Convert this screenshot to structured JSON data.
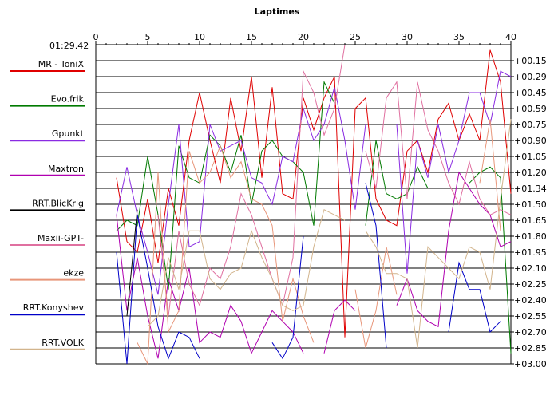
{
  "chart_data": {
    "type": "line",
    "title": "Laptimes",
    "base_time_label": "01:29.42",
    "xlim": [
      0,
      40
    ],
    "x_ticks": [
      0,
      5,
      10,
      15,
      20,
      25,
      30,
      35,
      40
    ],
    "ylim": [
      0,
      3.0
    ],
    "y_tick_labels": [
      "+00.15",
      "+00.29",
      "+00.45",
      "+00.59",
      "+00.75",
      "+00.90",
      "+01.05",
      "+01.20",
      "+01.34",
      "+01.50",
      "+01.65",
      "+01.80",
      "+01.95",
      "+02.10",
      "+02.25",
      "+02.40",
      "+02.55",
      "+02.70",
      "+02.85",
      "+03.00"
    ],
    "grid": true,
    "legend_position": "left",
    "series": [
      {
        "name": "MR - ToniX",
        "color": "#e00000",
        "points": [
          [
            2,
            1.25
          ],
          [
            3,
            1.85
          ],
          [
            4,
            1.95
          ],
          [
            5,
            1.45
          ],
          [
            6,
            2.05
          ],
          [
            7,
            1.35
          ],
          [
            8,
            1.7
          ],
          [
            9,
            0.9
          ],
          [
            10,
            0.45
          ],
          [
            11,
            0.9
          ],
          [
            12,
            1.3
          ],
          [
            13,
            0.5
          ],
          [
            14,
            1.0
          ],
          [
            15,
            0.3
          ],
          [
            16,
            1.25
          ],
          [
            17,
            0.4
          ],
          [
            18,
            1.4
          ],
          [
            19,
            1.45
          ],
          [
            20,
            0.5
          ],
          [
            21,
            0.8
          ],
          [
            22,
            0.5
          ],
          [
            23,
            0.3
          ],
          [
            24,
            2.75
          ],
          [
            25,
            0.6
          ],
          [
            26,
            0.5
          ],
          [
            27,
            1.45
          ],
          [
            28,
            1.65
          ],
          [
            29,
            1.7
          ],
          [
            30,
            1.0
          ],
          [
            31,
            0.9
          ],
          [
            32,
            1.2
          ],
          [
            33,
            0.7
          ],
          [
            34,
            0.55
          ],
          [
            35,
            0.9
          ],
          [
            36,
            0.65
          ],
          [
            37,
            0.9
          ],
          [
            38,
            0.05
          ],
          [
            39,
            0.35
          ],
          [
            40,
            1.4
          ]
        ]
      },
      {
        "name": "Evo.frik",
        "color": "#007a00",
        "points": [
          [
            2,
            1.75
          ],
          [
            3,
            1.65
          ],
          [
            4,
            1.7
          ],
          [
            5,
            1.05
          ],
          [
            6,
            1.6
          ],
          [
            7,
            2.3
          ],
          [
            8,
            0.95
          ],
          [
            9,
            1.25
          ],
          [
            10,
            1.3
          ],
          [
            11,
            0.85
          ],
          [
            12,
            0.95
          ],
          [
            13,
            1.2
          ],
          [
            14,
            0.85
          ],
          [
            15,
            1.5
          ],
          [
            16,
            1.0
          ],
          [
            17,
            0.9
          ],
          [
            18,
            1.05
          ],
          [
            19,
            1.1
          ],
          [
            20,
            1.2
          ],
          [
            21,
            1.7
          ],
          [
            22,
            0.35
          ],
          [
            23,
            0.55
          ],
          [
            null,
            null
          ],
          [
            26,
            1.7
          ],
          [
            27,
            0.9
          ],
          [
            28,
            1.4
          ],
          [
            29,
            1.45
          ],
          [
            30,
            1.4
          ],
          [
            31,
            1.15
          ],
          [
            32,
            1.35
          ],
          [
            null,
            null
          ],
          [
            36,
            1.3
          ],
          [
            37,
            1.2
          ],
          [
            38,
            1.15
          ],
          [
            39,
            1.25
          ],
          [
            40,
            2.9
          ]
        ]
      },
      {
        "name": "Gpunkt",
        "color": "#8a2be2",
        "points": [
          [
            2,
            1.6
          ],
          [
            3,
            1.15
          ],
          [
            4,
            1.6
          ],
          [
            5,
            1.95
          ],
          [
            6,
            2.35
          ],
          [
            7,
            1.5
          ],
          [
            8,
            0.75
          ],
          [
            9,
            1.9
          ],
          [
            10,
            1.85
          ],
          [
            11,
            0.75
          ],
          [
            12,
            1.0
          ],
          [
            13,
            0.95
          ],
          [
            14,
            0.9
          ],
          [
            15,
            1.25
          ],
          [
            16,
            1.3
          ],
          [
            17,
            1.5
          ],
          [
            18,
            1.05
          ],
          [
            19,
            1.1
          ],
          [
            20,
            0.6
          ],
          [
            21,
            0.9
          ],
          [
            22,
            0.75
          ],
          [
            23,
            0.4
          ],
          [
            24,
            0.9
          ],
          [
            25,
            1.55
          ],
          [
            26,
            0.75
          ],
          [
            null,
            null
          ],
          [
            29,
            0.75
          ],
          [
            30,
            2.15
          ],
          [
            31,
            0.9
          ],
          [
            32,
            1.25
          ],
          [
            33,
            0.75
          ],
          [
            34,
            1.2
          ],
          [
            35,
            0.9
          ],
          [
            36,
            0.45
          ],
          [
            37,
            0.45
          ],
          [
            38,
            0.75
          ],
          [
            39,
            0.25
          ],
          [
            40,
            0.3
          ]
        ]
      },
      {
        "name": "Maxtron",
        "color": "#b000b0",
        "points": [
          [
            2,
            1.6
          ],
          [
            3,
            2.5
          ],
          [
            4,
            2.0
          ],
          [
            5,
            2.55
          ],
          [
            6,
            2.95
          ],
          [
            7,
            2.2
          ],
          [
            8,
            2.5
          ],
          [
            9,
            2.1
          ],
          [
            10,
            2.8
          ],
          [
            11,
            2.7
          ],
          [
            12,
            2.75
          ],
          [
            13,
            2.45
          ],
          [
            14,
            2.6
          ],
          [
            15,
            2.9
          ],
          [
            16,
            2.7
          ],
          [
            17,
            2.5
          ],
          [
            18,
            2.6
          ],
          [
            19,
            2.7
          ],
          [
            20,
            2.9
          ],
          [
            null,
            null
          ],
          [
            22,
            2.9
          ],
          [
            23,
            2.5
          ],
          [
            24,
            2.4
          ],
          [
            25,
            2.5
          ],
          [
            null,
            null
          ],
          [
            29,
            2.45
          ],
          [
            30,
            2.2
          ],
          [
            31,
            2.5
          ],
          [
            32,
            2.6
          ],
          [
            33,
            2.65
          ],
          [
            34,
            1.75
          ],
          [
            35,
            1.2
          ],
          [
            36,
            1.35
          ],
          [
            37,
            1.5
          ],
          [
            38,
            1.6
          ],
          [
            39,
            1.9
          ],
          [
            40,
            1.85
          ]
        ]
      },
      {
        "name": "RRT.BlicKrig",
        "color": "#000000",
        "points": [
          [
            3,
            2.55
          ],
          [
            4,
            1.55
          ]
        ]
      },
      {
        "name": "Maxii-GPT-",
        "color": "#e070a0",
        "points": [
          [
            6,
            1.6
          ],
          [
            7,
            2.55
          ],
          [
            8,
            1.75
          ],
          [
            9,
            2.25
          ],
          [
            10,
            2.45
          ],
          [
            11,
            2.1
          ],
          [
            12,
            2.2
          ],
          [
            13,
            1.9
          ],
          [
            14,
            1.4
          ],
          [
            15,
            1.6
          ],
          [
            16,
            1.9
          ],
          [
            17,
            2.2
          ],
          [
            18,
            2.45
          ],
          [
            19,
            2.0
          ],
          [
            20,
            0.25
          ],
          [
            21,
            0.45
          ],
          [
            22,
            0.85
          ],
          [
            23,
            0.6
          ],
          [
            24,
            0.0
          ],
          [
            null,
            null
          ],
          [
            26,
            1.0
          ],
          [
            27,
            1.35
          ],
          [
            28,
            0.5
          ],
          [
            29,
            0.35
          ],
          [
            30,
            1.45
          ],
          [
            31,
            0.35
          ],
          [
            32,
            0.8
          ],
          [
            33,
            1.0
          ],
          [
            34,
            1.3
          ],
          [
            35,
            1.5
          ],
          [
            36,
            1.1
          ],
          [
            37,
            1.45
          ],
          [
            38,
            1.6
          ],
          [
            39,
            1.55
          ],
          [
            40,
            1.6
          ]
        ]
      },
      {
        "name": "ekze",
        "color": "#e8967a",
        "points": [
          [
            4,
            2.8
          ],
          [
            5,
            3.0
          ],
          [
            6,
            1.2
          ],
          [
            7,
            2.7
          ],
          [
            8,
            2.5
          ],
          [
            9,
            1.0
          ],
          [
            10,
            1.3
          ],
          [
            11,
            1.2
          ],
          [
            12,
            0.95
          ],
          [
            13,
            1.25
          ],
          [
            14,
            1.1
          ],
          [
            15,
            1.45
          ],
          [
            16,
            1.5
          ],
          [
            17,
            1.7
          ],
          [
            18,
            2.6
          ],
          [
            19,
            2.2
          ],
          [
            20,
            2.55
          ],
          [
            21,
            2.8
          ],
          [
            null,
            null
          ],
          [
            25,
            2.3
          ],
          [
            26,
            2.85
          ],
          [
            27,
            2.5
          ],
          [
            28,
            1.9
          ],
          [
            29,
            2.35
          ],
          [
            null,
            null
          ],
          [
            37,
            1.3
          ],
          [
            38,
            0.7
          ],
          [
            39,
            1.75
          ]
        ]
      },
      {
        "name": "RRT.Konyshev",
        "color": "#0000c8",
        "points": [
          [
            2,
            1.95
          ],
          [
            3,
            3.0
          ],
          [
            4,
            1.6
          ],
          [
            5,
            2.1
          ],
          [
            6,
            2.65
          ],
          [
            7,
            2.95
          ],
          [
            8,
            2.7
          ],
          [
            9,
            2.75
          ],
          [
            10,
            2.95
          ],
          [
            null,
            null
          ],
          [
            17,
            2.8
          ],
          [
            18,
            2.95
          ],
          [
            19,
            2.75
          ],
          [
            20,
            1.8
          ],
          [
            null,
            null
          ],
          [
            26,
            1.3
          ],
          [
            27,
            1.7
          ],
          [
            28,
            2.85
          ],
          [
            null,
            null
          ],
          [
            34,
            2.7
          ],
          [
            35,
            2.05
          ],
          [
            36,
            2.3
          ],
          [
            37,
            2.3
          ],
          [
            38,
            2.7
          ],
          [
            39,
            2.6
          ]
        ]
      },
      {
        "name": "RRT.VOLK",
        "color": "#d2b48c",
        "points": [
          [
            5,
            2.65
          ],
          [
            6,
            2.55
          ],
          [
            7,
            2.0
          ],
          [
            8,
            2.3
          ],
          [
            9,
            1.75
          ],
          [
            10,
            1.75
          ],
          [
            11,
            2.2
          ],
          [
            12,
            2.3
          ],
          [
            13,
            2.15
          ],
          [
            14,
            2.1
          ],
          [
            15,
            1.75
          ],
          [
            16,
            2.0
          ],
          [
            17,
            2.2
          ],
          [
            18,
            2.45
          ],
          [
            19,
            2.5
          ],
          [
            20,
            2.45
          ],
          [
            21,
            1.9
          ],
          [
            22,
            1.55
          ],
          [
            23,
            1.6
          ],
          [
            24,
            1.65
          ],
          [
            null,
            null
          ],
          [
            26,
            1.75
          ],
          [
            27,
            1.9
          ],
          [
            28,
            2.15
          ],
          [
            29,
            2.15
          ],
          [
            30,
            2.2
          ],
          [
            31,
            2.85
          ],
          [
            32,
            1.9
          ],
          [
            33,
            2.0
          ],
          [
            34,
            2.1
          ],
          [
            35,
            2.2
          ],
          [
            36,
            1.9
          ],
          [
            37,
            1.95
          ],
          [
            38,
            2.3
          ],
          [
            39,
            1.45
          ],
          [
            40,
            0.7
          ]
        ]
      }
    ]
  }
}
